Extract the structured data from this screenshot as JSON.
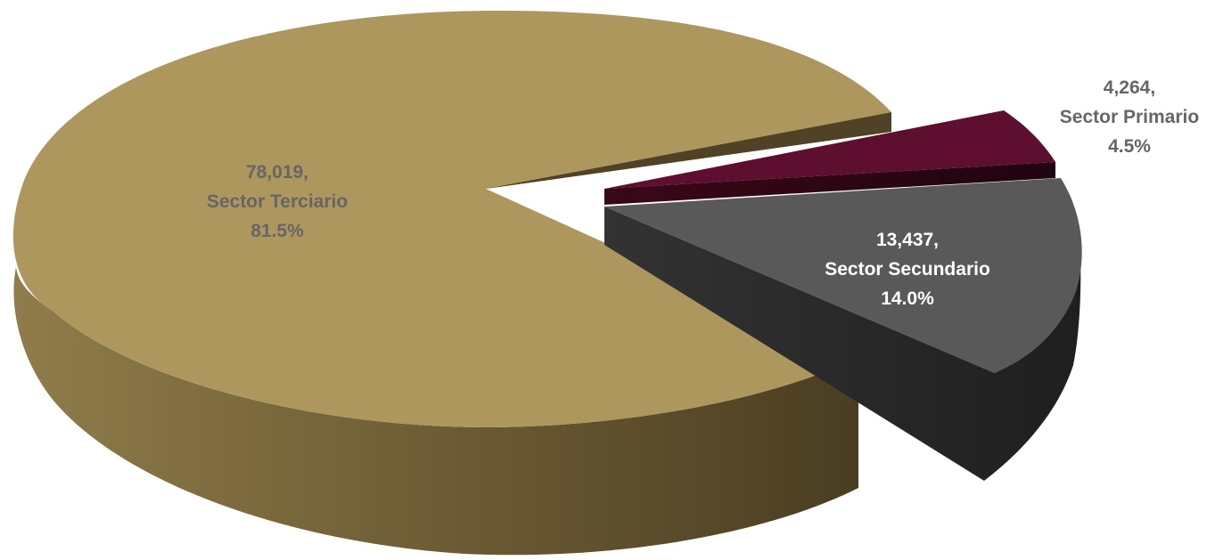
{
  "chart_data": {
    "type": "pie",
    "style": "3d-exploded",
    "slices": [
      {
        "key": "terciario",
        "value_text": "78,019,",
        "label": "Sector Terciario",
        "percent_text": "81.5%",
        "value": 78019,
        "percent": 81.5,
        "color": "#AD975D",
        "side_color": "#5F5030",
        "label_color": "#666666"
      },
      {
        "key": "primario",
        "value_text": "4,264,",
        "label": "Sector Primario",
        "percent_text": "4.5%",
        "value": 4264,
        "percent": 4.5,
        "color": "#5E0E2E",
        "side_color": "#2A0614",
        "label_color": "#666666"
      },
      {
        "key": "secundario",
        "value_text": "13,437,",
        "label": "Sector Secundario",
        "percent_text": "14.0%",
        "value": 13437,
        "percent": 14.0,
        "color": "#595959",
        "side_color": "#262626",
        "label_color": "#FFFFFF"
      }
    ]
  }
}
